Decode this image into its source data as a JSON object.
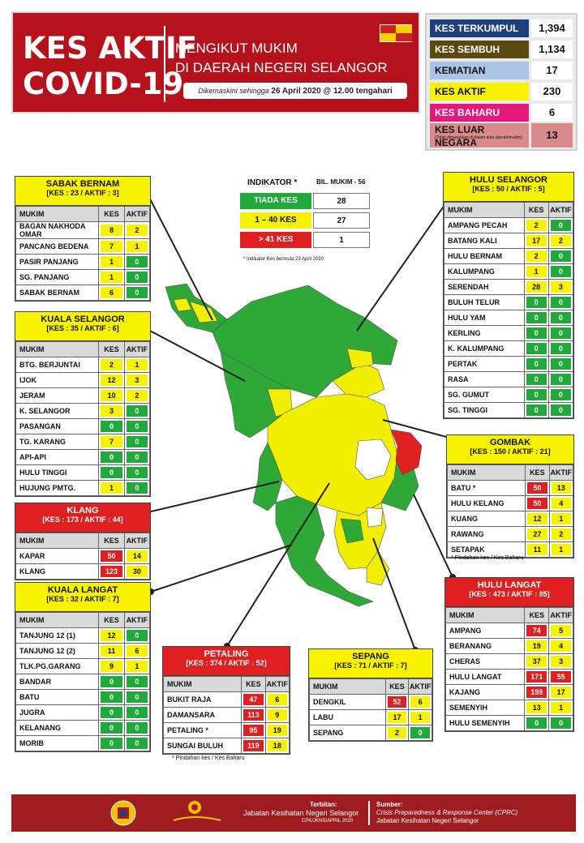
{
  "header": {
    "title_line1": "KES AKTIF",
    "title_line2": "COVID-19",
    "subtitle_line1": "MENGIKUT MUKIM",
    "subtitle_line2": "DI DAERAH NEGERI SELANGOR",
    "update_prefix": "Dikemaskini sehingga",
    "update_value": "26 April 2020 @ 12.00 tengahari"
  },
  "stats": [
    {
      "label": "KES TERKUMPUL",
      "value": "1,394",
      "bg": "#1f3f7a",
      "fg": "#ffffff"
    },
    {
      "label": "KES SEMBUH",
      "value": "1,134",
      "bg": "#5a4a12",
      "fg": "#ffffff"
    },
    {
      "label": "KEMATIAN",
      "value": "17",
      "bg": "#a9c4e4",
      "fg": "#111111"
    },
    {
      "label": "KES AKTIF",
      "value": "230",
      "bg": "#f7f300",
      "fg": "#111111"
    },
    {
      "label": "KES BAHARU",
      "value": "6",
      "bg": "#e4177a",
      "fg": "#ffffff"
    },
    {
      "label": "KES LUAR NEGARA",
      "value": "13",
      "bg": "#d98b8b",
      "fg": "#111111",
      "note": "(Tidak dimasukkan di dalam data daerah/mukim)"
    }
  ],
  "indicator": {
    "title": "INDIKATOR *",
    "bil": "BIL. MUKIM - 56",
    "rows": [
      {
        "label": "TIADA KES",
        "value": "28",
        "bg": "#1faa3b",
        "fg": "#ffffff"
      },
      {
        "label": "1 – 40 KES",
        "value": "27",
        "bg": "#f7f300",
        "fg": "#111111"
      },
      {
        "label": "> 41 KES",
        "value": "1",
        "bg": "#e02020",
        "fg": "#ffffff"
      }
    ],
    "note": "* Indikator Kes bermula 23 April 2020"
  },
  "columns": {
    "mukim": "MUKIM",
    "kes": "KES",
    "aktif": "AKTIF"
  },
  "districts": {
    "sabak_bernam": {
      "name": "SABAK BERNAM",
      "summary": "[KES : 23 / AKTIF : 3]",
      "rows": [
        {
          "mukim": "BAGAN NAKHODA OMAR",
          "kes": "8",
          "aktif": "2",
          "kc": "yel",
          "ac": "yel"
        },
        {
          "mukim": "PANCANG BEDENA",
          "kes": "7",
          "aktif": "1",
          "kc": "yel",
          "ac": "yel"
        },
        {
          "mukim": "PASIR PANJANG",
          "kes": "1",
          "aktif": "0",
          "kc": "yel",
          "ac": "grn"
        },
        {
          "mukim": "SG. PANJANG",
          "kes": "1",
          "aktif": "0",
          "kc": "yel",
          "ac": "grn"
        },
        {
          "mukim": "SABAK BERNAM",
          "kes": "6",
          "aktif": "0",
          "kc": "yel",
          "ac": "grn"
        }
      ]
    },
    "kuala_selangor": {
      "name": "KUALA SELANGOR",
      "summary": "[KES : 35 / AKTIF : 6]",
      "rows": [
        {
          "mukim": "BTG. BERJUNTAI",
          "kes": "2",
          "aktif": "1",
          "kc": "yel",
          "ac": "yel"
        },
        {
          "mukim": "IJOK",
          "kes": "12",
          "aktif": "3",
          "kc": "yel",
          "ac": "yel"
        },
        {
          "mukim": "JERAM",
          "kes": "10",
          "aktif": "2",
          "kc": "yel",
          "ac": "yel"
        },
        {
          "mukim": "K. SELANGOR",
          "kes": "3",
          "aktif": "0",
          "kc": "yel",
          "ac": "grn"
        },
        {
          "mukim": "PASANGAN",
          "kes": "0",
          "aktif": "0",
          "kc": "grn",
          "ac": "grn"
        },
        {
          "mukim": "TG. KARANG",
          "kes": "7",
          "aktif": "0",
          "kc": "yel",
          "ac": "grn"
        },
        {
          "mukim": "API-API",
          "kes": "0",
          "aktif": "0",
          "kc": "grn",
          "ac": "grn"
        },
        {
          "mukim": "HULU TINGGI",
          "kes": "0",
          "aktif": "0",
          "kc": "grn",
          "ac": "grn"
        },
        {
          "mukim": "HUJUNG PMTG.",
          "kes": "1",
          "aktif": "0",
          "kc": "yel",
          "ac": "grn"
        }
      ]
    },
    "klang": {
      "name": "KLANG",
      "summary": "[KES : 173 / AKTIF : 44]",
      "rows": [
        {
          "mukim": "KAPAR",
          "kes": "50",
          "aktif": "14",
          "kc": "red",
          "ac": "yel"
        },
        {
          "mukim": "KLANG",
          "kes": "123",
          "aktif": "30",
          "kc": "red",
          "ac": "yel"
        }
      ]
    },
    "kuala_langat": {
      "name": "KUALA LANGAT",
      "summary": "[KES : 32 / AKTIF : 7]",
      "rows": [
        {
          "mukim": "TANJUNG 12 (1)",
          "kes": "12",
          "aktif": "0",
          "kc": "yel",
          "ac": "grn"
        },
        {
          "mukim": "TANJUNG 12 (2)",
          "kes": "11",
          "aktif": "6",
          "kc": "yel",
          "ac": "yel"
        },
        {
          "mukim": "TLK.PG.GARANG",
          "kes": "9",
          "aktif": "1",
          "kc": "yel",
          "ac": "yel"
        },
        {
          "mukim": "BANDAR",
          "kes": "0",
          "aktif": "0",
          "kc": "grn",
          "ac": "grn"
        },
        {
          "mukim": "BATU",
          "kes": "0",
          "aktif": "0",
          "kc": "grn",
          "ac": "grn"
        },
        {
          "mukim": "JUGRA",
          "kes": "0",
          "aktif": "0",
          "kc": "grn",
          "ac": "grn"
        },
        {
          "mukim": "KELANANG",
          "kes": "0",
          "aktif": "0",
          "kc": "grn",
          "ac": "grn"
        },
        {
          "mukim": "MORIB",
          "kes": "0",
          "aktif": "0",
          "kc": "grn",
          "ac": "grn"
        }
      ]
    },
    "petaling": {
      "name": "PETALING",
      "summary": "[KES : 374 / AKTIF : 52]",
      "rows": [
        {
          "mukim": "BUKIT RAJA",
          "kes": "47",
          "aktif": "6",
          "kc": "red",
          "ac": "yel"
        },
        {
          "mukim": "DAMANSARA",
          "kes": "113",
          "aktif": "9",
          "kc": "red",
          "ac": "yel"
        },
        {
          "mukim": "PETALING *",
          "kes": "95",
          "aktif": "19",
          "kc": "red",
          "ac": "yel"
        },
        {
          "mukim": "SUNGAI BULUH",
          "kes": "119",
          "aktif": "18",
          "kc": "red",
          "ac": "yel"
        }
      ]
    },
    "sepang": {
      "name": "SEPANG",
      "summary": "[KES : 71 / AKTIF : 7]",
      "rows": [
        {
          "mukim": "DENGKIL",
          "kes": "52",
          "aktif": "6",
          "kc": "red",
          "ac": "yel"
        },
        {
          "mukim": "LABU",
          "kes": "17",
          "aktif": "1",
          "kc": "yel",
          "ac": "yel"
        },
        {
          "mukim": "SEPANG",
          "kes": "2",
          "aktif": "0",
          "kc": "yel",
          "ac": "grn"
        }
      ]
    },
    "hulu_selangor": {
      "name": "HULU SELANGOR",
      "summary": "[KES : 50 / AKTIF : 5]",
      "rows": [
        {
          "mukim": "AMPANG PECAH",
          "kes": "2",
          "aktif": "0",
          "kc": "yel",
          "ac": "grn"
        },
        {
          "mukim": "BATANG KALI",
          "kes": "17",
          "aktif": "2",
          "kc": "yel",
          "ac": "yel"
        },
        {
          "mukim": "HULU BERNAM",
          "kes": "2",
          "aktif": "0",
          "kc": "yel",
          "ac": "grn"
        },
        {
          "mukim": "KALUMPANG",
          "kes": "1",
          "aktif": "0",
          "kc": "yel",
          "ac": "grn"
        },
        {
          "mukim": "SERENDAH",
          "kes": "28",
          "aktif": "3",
          "kc": "yel",
          "ac": "yel"
        },
        {
          "mukim": "BULUH TELUR",
          "kes": "0",
          "aktif": "0",
          "kc": "grn",
          "ac": "grn"
        },
        {
          "mukim": "HULU YAM",
          "kes": "0",
          "aktif": "0",
          "kc": "grn",
          "ac": "grn"
        },
        {
          "mukim": "KERLING",
          "kes": "0",
          "aktif": "0",
          "kc": "grn",
          "ac": "grn"
        },
        {
          "mukim": "K. KALUMPANG",
          "kes": "0",
          "aktif": "0",
          "kc": "grn",
          "ac": "grn"
        },
        {
          "mukim": "PERTAK",
          "kes": "0",
          "aktif": "0",
          "kc": "grn",
          "ac": "grn"
        },
        {
          "mukim": "RASA",
          "kes": "0",
          "aktif": "0",
          "kc": "grn",
          "ac": "grn"
        },
        {
          "mukim": "SG. GUMUT",
          "kes": "0",
          "aktif": "0",
          "kc": "grn",
          "ac": "grn"
        },
        {
          "mukim": "SG. TINGGI",
          "kes": "0",
          "aktif": "0",
          "kc": "grn",
          "ac": "grn"
        }
      ]
    },
    "gombak": {
      "name": "GOMBAK",
      "summary": "[KES : 150 / AKTIF : 21]",
      "rows": [
        {
          "mukim": "BATU *",
          "kes": "50",
          "aktif": "13",
          "kc": "red",
          "ac": "yel"
        },
        {
          "mukim": "HULU KELANG",
          "kes": "50",
          "aktif": "4",
          "kc": "red",
          "ac": "yel"
        },
        {
          "mukim": "KUANG",
          "kes": "12",
          "aktif": "1",
          "kc": "yel",
          "ac": "yel"
        },
        {
          "mukim": "RAWANG",
          "kes": "27",
          "aktif": "2",
          "kc": "yel",
          "ac": "yel"
        },
        {
          "mukim": "SETAPAK",
          "kes": "11",
          "aktif": "1",
          "kc": "yel",
          "ac": "yel"
        }
      ]
    },
    "hulu_langat": {
      "name": "HULU LANGAT",
      "summary": "[KES : 473 / AKTIF : 85]",
      "rows": [
        {
          "mukim": "AMPANG",
          "kes": "74",
          "aktif": "5",
          "kc": "red",
          "ac": "yel"
        },
        {
          "mukim": "BERANANG",
          "kes": "19",
          "aktif": "4",
          "kc": "yel",
          "ac": "yel"
        },
        {
          "mukim": "CHERAS",
          "kes": "37",
          "aktif": "3",
          "kc": "yel",
          "ac": "yel"
        },
        {
          "mukim": "HULU LANGAT",
          "kes": "171",
          "aktif": "55",
          "kc": "red",
          "ac": "red"
        },
        {
          "mukim": "KAJANG",
          "kes": "159",
          "aktif": "17",
          "kc": "red",
          "ac": "yel"
        },
        {
          "mukim": "SEMENYIH",
          "kes": "13",
          "aktif": "1",
          "kc": "yel",
          "ac": "yel"
        },
        {
          "mukim": "HULU SEMENYIH",
          "kes": "0",
          "aktif": "0",
          "kc": "grn",
          "ac": "grn"
        }
      ]
    }
  },
  "notes": {
    "gombak": "* Pindahan kes / Kes Baharu",
    "petaling": "* Pindahan kes / Kes Baharu"
  },
  "footer": {
    "terbitan_label": "Terbitan:",
    "terbitan_org": "Jabatan Kesihatan Negeri Selangor",
    "terbitan_ref": "CPK/JKNS/APRIL 2020",
    "sumber_label": "Sumber:",
    "sumber_line1": "Crisis Preparedness & Response Center (CPRC)",
    "sumber_line2": "Jabatan Kesihatan Negeri Selangor"
  }
}
